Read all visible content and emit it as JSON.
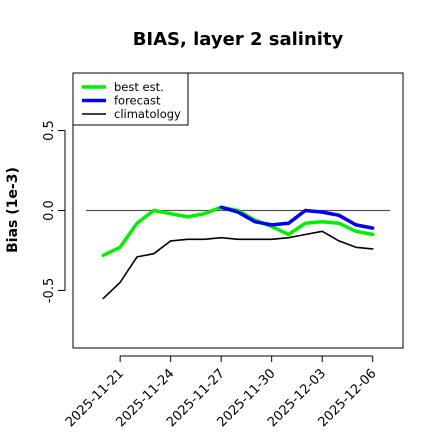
{
  "chart_data": {
    "type": "line",
    "title": "BIAS, layer 2 salinity",
    "ylabel": "Bias (1e-3)",
    "xlabel": "",
    "x_ticks": [
      {
        "label": "2025-11-21",
        "day": 0,
        "color": "#000000"
      },
      {
        "label": "2025-11-24",
        "day": 3,
        "color": "#000000"
      },
      {
        "label": "2025-11-27",
        "day": 6,
        "color": "#228B22"
      },
      {
        "label": "2025-11-30",
        "day": 9,
        "color": "#000000"
      },
      {
        "label": "2025-12-03",
        "day": 12,
        "color": "#000000"
      },
      {
        "label": "2025-12-06",
        "day": 15,
        "color": "#000000"
      }
    ],
    "y_ticks": [
      {
        "label": "-0.5",
        "value": -0.5
      },
      {
        "label": "0.0",
        "value": 0.0
      },
      {
        "label": "0.5",
        "value": 0.5
      }
    ],
    "xlim_days": [
      -2.8,
      16.8
    ],
    "ylim": [
      -0.86,
      0.86
    ],
    "reference_line": 0,
    "legend_position": "top-left",
    "series": [
      {
        "name": "best est.",
        "color": "#00ee00",
        "width": 3.5,
        "days": [
          -1,
          0,
          1,
          2,
          3,
          4,
          5,
          6,
          7,
          8,
          9,
          10,
          11,
          12,
          13,
          14,
          15
        ],
        "values": [
          -0.28,
          -0.23,
          -0.08,
          0.0,
          -0.02,
          -0.04,
          -0.02,
          0.02,
          0.0,
          -0.06,
          -0.1,
          -0.15,
          -0.08,
          -0.07,
          -0.08,
          -0.13,
          -0.15
        ]
      },
      {
        "name": "forecast",
        "color": "#0000ee",
        "width": 3.5,
        "days": [
          6,
          7,
          8,
          9,
          10,
          11,
          12,
          13,
          14,
          15
        ],
        "values": [
          0.02,
          -0.01,
          -0.07,
          -0.09,
          -0.08,
          0.0,
          -0.01,
          -0.03,
          -0.09,
          -0.11
        ]
      },
      {
        "name": "climatology",
        "color": "#000000",
        "width": 1.6,
        "days": [
          -1,
          0,
          1,
          2,
          3,
          4,
          5,
          6,
          7,
          8,
          9,
          10,
          11,
          12,
          13,
          14,
          15
        ],
        "values": [
          -0.55,
          -0.45,
          -0.29,
          -0.27,
          -0.19,
          -0.18,
          -0.18,
          -0.17,
          -0.18,
          -0.18,
          -0.18,
          -0.17,
          -0.15,
          -0.13,
          -0.19,
          -0.23,
          -0.24
        ]
      }
    ]
  }
}
